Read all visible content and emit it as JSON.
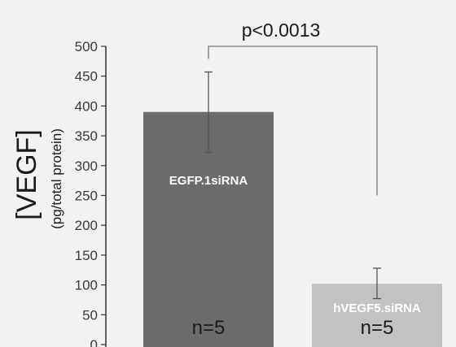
{
  "chart_data": {
    "type": "bar",
    "title": "",
    "ylabel": "[VEGF]",
    "ylabel_unit": "(pg/total protein)",
    "ylim": [
      0,
      500
    ],
    "yticks": [
      0,
      50,
      100,
      150,
      200,
      250,
      300,
      350,
      400,
      450,
      500
    ],
    "grid": false,
    "bars": [
      {
        "label": "EGFP.1siRNA",
        "value": 390,
        "error_low": 322,
        "error_high": 457,
        "n_text": "n=5",
        "color": "#6b6b6b"
      },
      {
        "label": "hVEGF5.siRNA",
        "value": 102,
        "error_low": 77,
        "error_high": 128,
        "n_text": "n=5",
        "color": "#c2c2c2"
      }
    ],
    "significance": {
      "text": "p<0.0013"
    }
  }
}
